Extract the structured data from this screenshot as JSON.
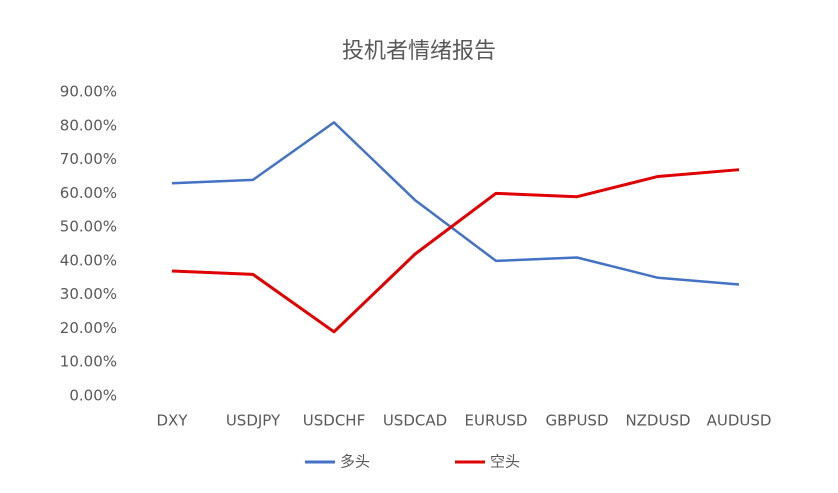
{
  "chart_data": {
    "type": "line",
    "title": "投机者情绪报告",
    "categories": [
      "DXY",
      "USDJPY",
      "USDCHF",
      "USDCAD",
      "EURUSD",
      "GBPUSD",
      "NZDUSD",
      "AUDUSD"
    ],
    "series": [
      {
        "name": "多头",
        "color": "#4472c4",
        "values": [
          63,
          64,
          81,
          58,
          40,
          41,
          35,
          33
        ]
      },
      {
        "name": "空头",
        "color": "#e00000",
        "values": [
          37,
          36,
          19,
          42,
          60,
          59,
          65,
          67
        ]
      }
    ],
    "ylim": [
      0,
      90
    ],
    "yticks": [
      {
        "value": 0,
        "label": "0.00%"
      },
      {
        "value": 10,
        "label": "10.00%"
      },
      {
        "value": 20,
        "label": "20.00%"
      },
      {
        "value": 30,
        "label": "30.00%"
      },
      {
        "value": 40,
        "label": "40.00%"
      },
      {
        "value": 50,
        "label": "50.00%"
      },
      {
        "value": 60,
        "label": "60.00%"
      },
      {
        "value": 70,
        "label": "70.00%"
      },
      {
        "value": 80,
        "label": "80.00%"
      },
      {
        "value": 90,
        "label": "90.00%"
      }
    ],
    "grid": false,
    "legend": "bottom"
  }
}
